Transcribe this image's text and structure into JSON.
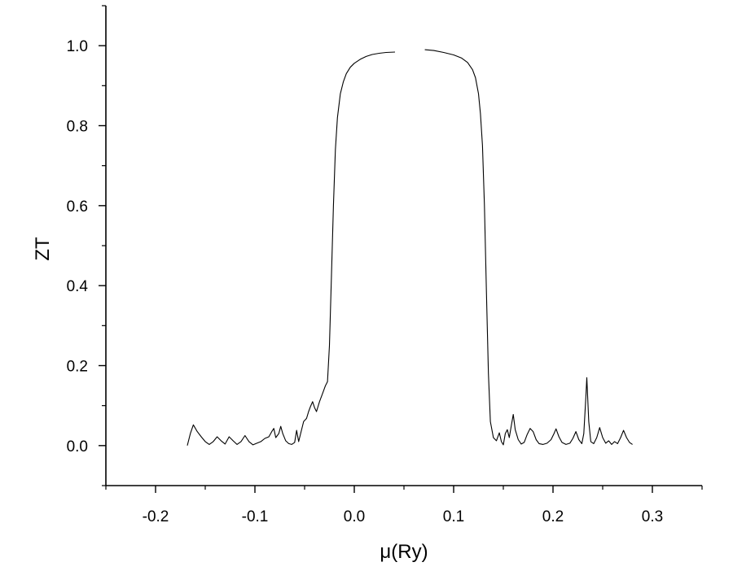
{
  "chart_data": {
    "type": "line",
    "title": "",
    "xlabel": "μ(Ry)",
    "ylabel": "ZT",
    "xlim": [
      -0.25,
      0.35
    ],
    "ylim": [
      -0.1,
      1.1
    ],
    "xticks": [
      -0.2,
      -0.1,
      0.0,
      0.1,
      0.2,
      0.3
    ],
    "xtick_labels": [
      "-0.2",
      "-0.1",
      "0.0",
      "0.1",
      "0.2",
      "0.3"
    ],
    "yticks": [
      0.0,
      0.2,
      0.4,
      0.6,
      0.8,
      1.0
    ],
    "ytick_labels": [
      "0.0",
      "0.2",
      "0.4",
      "0.6",
      "0.8",
      "1.0"
    ],
    "grid": false,
    "legend": "none",
    "line_color": "#000000",
    "series": [
      {
        "segments": [
          [
            [
              -0.168,
              0.0
            ],
            [
              -0.165,
              0.03
            ],
            [
              -0.162,
              0.052
            ],
            [
              -0.158,
              0.035
            ],
            [
              -0.154,
              0.022
            ],
            [
              -0.15,
              0.01
            ],
            [
              -0.146,
              0.003
            ],
            [
              -0.142,
              0.01
            ],
            [
              -0.138,
              0.022
            ],
            [
              -0.134,
              0.012
            ],
            [
              -0.13,
              0.004
            ],
            [
              -0.126,
              0.022
            ],
            [
              -0.122,
              0.012
            ],
            [
              -0.118,
              0.003
            ],
            [
              -0.114,
              0.01
            ],
            [
              -0.11,
              0.025
            ],
            [
              -0.106,
              0.01
            ],
            [
              -0.102,
              0.002
            ],
            [
              -0.098,
              0.006
            ],
            [
              -0.094,
              0.01
            ],
            [
              -0.09,
              0.018
            ],
            [
              -0.086,
              0.022
            ],
            [
              -0.083,
              0.035
            ],
            [
              -0.081,
              0.043
            ],
            [
              -0.079,
              0.02
            ],
            [
              -0.076,
              0.03
            ],
            [
              -0.074,
              0.048
            ],
            [
              -0.072,
              0.03
            ],
            [
              -0.069,
              0.012
            ],
            [
              -0.066,
              0.005
            ],
            [
              -0.063,
              0.003
            ],
            [
              -0.06,
              0.008
            ],
            [
              -0.058,
              0.038
            ],
            [
              -0.056,
              0.01
            ],
            [
              -0.054,
              0.03
            ],
            [
              -0.051,
              0.06
            ],
            [
              -0.048,
              0.068
            ],
            [
              -0.046,
              0.085
            ],
            [
              -0.044,
              0.098
            ],
            [
              -0.042,
              0.11
            ],
            [
              -0.04,
              0.095
            ],
            [
              -0.038,
              0.085
            ],
            [
              -0.035,
              0.11
            ],
            [
              -0.032,
              0.13
            ],
            [
              -0.029,
              0.15
            ],
            [
              -0.027,
              0.16
            ],
            [
              -0.025,
              0.25
            ],
            [
              -0.023,
              0.42
            ],
            [
              -0.021,
              0.6
            ],
            [
              -0.019,
              0.74
            ],
            [
              -0.017,
              0.82
            ],
            [
              -0.014,
              0.88
            ],
            [
              -0.011,
              0.91
            ],
            [
              -0.008,
              0.93
            ],
            [
              -0.004,
              0.946
            ],
            [
              0.0,
              0.956
            ],
            [
              0.006,
              0.966
            ],
            [
              0.012,
              0.973
            ],
            [
              0.018,
              0.978
            ],
            [
              0.025,
              0.981
            ],
            [
              0.032,
              0.983
            ],
            [
              0.041,
              0.984
            ]
          ],
          [
            [
              0.071,
              0.99
            ],
            [
              0.08,
              0.988
            ],
            [
              0.09,
              0.983
            ],
            [
              0.1,
              0.977
            ],
            [
              0.108,
              0.969
            ],
            [
              0.114,
              0.958
            ],
            [
              0.119,
              0.94
            ],
            [
              0.122,
              0.92
            ],
            [
              0.125,
              0.88
            ],
            [
              0.127,
              0.83
            ],
            [
              0.129,
              0.75
            ],
            [
              0.131,
              0.6
            ],
            [
              0.133,
              0.38
            ],
            [
              0.135,
              0.18
            ],
            [
              0.137,
              0.06
            ],
            [
              0.14,
              0.02
            ],
            [
              0.143,
              0.012
            ],
            [
              0.146,
              0.032
            ],
            [
              0.148,
              0.01
            ],
            [
              0.15,
              0.002
            ],
            [
              0.152,
              0.03
            ],
            [
              0.154,
              0.04
            ],
            [
              0.156,
              0.02
            ],
            [
              0.158,
              0.05
            ],
            [
              0.16,
              0.078
            ],
            [
              0.162,
              0.04
            ],
            [
              0.165,
              0.015
            ],
            [
              0.168,
              0.004
            ],
            [
              0.171,
              0.008
            ],
            [
              0.174,
              0.028
            ],
            [
              0.177,
              0.043
            ],
            [
              0.18,
              0.035
            ],
            [
              0.183,
              0.015
            ],
            [
              0.186,
              0.005
            ],
            [
              0.19,
              0.003
            ],
            [
              0.194,
              0.006
            ],
            [
              0.198,
              0.015
            ],
            [
              0.201,
              0.03
            ],
            [
              0.203,
              0.042
            ],
            [
              0.206,
              0.022
            ],
            [
              0.209,
              0.008
            ],
            [
              0.213,
              0.003
            ],
            [
              0.217,
              0.006
            ],
            [
              0.22,
              0.018
            ],
            [
              0.223,
              0.035
            ],
            [
              0.226,
              0.015
            ],
            [
              0.229,
              0.005
            ],
            [
              0.231,
              0.03
            ],
            [
              0.233,
              0.12
            ],
            [
              0.234,
              0.17
            ],
            [
              0.236,
              0.06
            ],
            [
              0.238,
              0.01
            ],
            [
              0.241,
              0.005
            ],
            [
              0.244,
              0.02
            ],
            [
              0.247,
              0.045
            ],
            [
              0.25,
              0.02
            ],
            [
              0.253,
              0.006
            ],
            [
              0.256,
              0.012
            ],
            [
              0.259,
              0.003
            ],
            [
              0.262,
              0.01
            ],
            [
              0.265,
              0.005
            ],
            [
              0.268,
              0.02
            ],
            [
              0.271,
              0.038
            ],
            [
              0.274,
              0.02
            ],
            [
              0.277,
              0.008
            ],
            [
              0.28,
              0.003
            ]
          ]
        ]
      }
    ]
  }
}
